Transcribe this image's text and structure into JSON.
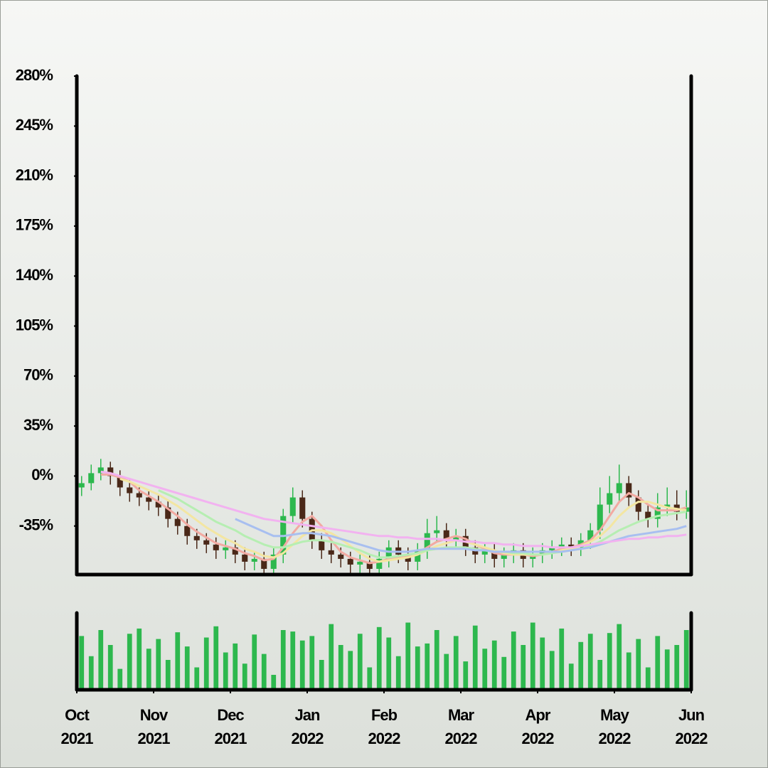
{
  "chart_data": {
    "type": "candlestick",
    "x": [
      0.0625,
      0.1875,
      0.3125,
      0.4375,
      0.5625,
      0.6875,
      0.8125,
      0.9375,
      1.0625,
      1.1875,
      1.3125,
      1.4375,
      1.5625,
      1.6875,
      1.8125,
      1.9375,
      2.0625,
      2.1875,
      2.3125,
      2.4375,
      2.5625,
      2.6875,
      2.8125,
      2.9375,
      3.0625,
      3.1875,
      3.3125,
      3.4375,
      3.5625,
      3.6875,
      3.8125,
      3.9375,
      4.0625,
      4.1875,
      4.3125,
      4.4375,
      4.5625,
      4.6875,
      4.8125,
      4.9375,
      5.0625,
      5.1875,
      5.3125,
      5.4375,
      5.5625,
      5.6875,
      5.8125,
      5.9375,
      6.0625,
      6.1875,
      6.3125,
      6.4375,
      6.5625,
      6.6875,
      6.8125,
      6.9375,
      7.0625,
      7.1875,
      7.3125,
      7.4375,
      7.5625,
      7.6875,
      7.8125,
      7.9375
    ],
    "open": [
      -8,
      -5,
      2,
      6,
      0,
      -8,
      -12,
      -15,
      -18,
      -22,
      -30,
      -35,
      -42,
      -45,
      -48,
      -52,
      -50,
      -55,
      -60,
      -58,
      -65,
      -55,
      -28,
      -15,
      -30,
      -45,
      -52,
      -55,
      -58,
      -62,
      -60,
      -65,
      -58,
      -50,
      -55,
      -60,
      -52,
      -40,
      -38,
      -45,
      -42,
      -50,
      -55,
      -52,
      -58,
      -55,
      -52,
      -58,
      -55,
      -52,
      -50,
      -48,
      -50,
      -45,
      -38,
      -20,
      -12,
      -5,
      -15,
      -25,
      -30,
      -22,
      -20,
      -25
    ],
    "high": [
      0,
      8,
      12,
      10,
      4,
      -3,
      -8,
      -10,
      -13,
      -17,
      -25,
      -30,
      -37,
      -40,
      -43,
      -45,
      -45,
      -50,
      -53,
      -53,
      -50,
      -23,
      -8,
      -10,
      -25,
      -40,
      -47,
      -50,
      -53,
      -55,
      -55,
      -53,
      -45,
      -45,
      -50,
      -47,
      -30,
      -28,
      -33,
      -37,
      -37,
      -45,
      -47,
      -47,
      -50,
      -47,
      -47,
      -50,
      -47,
      -45,
      -43,
      -43,
      -40,
      -33,
      -8,
      0,
      8,
      0,
      -10,
      -20,
      -12,
      -8,
      -10,
      -10
    ],
    "low": [
      -14,
      -10,
      -3,
      -6,
      -14,
      -18,
      -21,
      -24,
      -28,
      -36,
      -41,
      -48,
      -51,
      -54,
      -58,
      -58,
      -61,
      -66,
      -66,
      -71,
      -71,
      -61,
      -33,
      -36,
      -51,
      -58,
      -61,
      -64,
      -68,
      -68,
      -71,
      -71,
      -64,
      -61,
      -66,
      -66,
      -58,
      -46,
      -51,
      -51,
      -56,
      -61,
      -61,
      -64,
      -64,
      -61,
      -64,
      -64,
      -61,
      -58,
      -56,
      -56,
      -56,
      -51,
      -44,
      -26,
      -18,
      -21,
      -31,
      -36,
      -36,
      -28,
      -31,
      -30
    ],
    "close": [
      -5,
      2,
      6,
      0,
      -8,
      -12,
      -15,
      -18,
      -22,
      -30,
      -35,
      -42,
      -45,
      -48,
      -52,
      -50,
      -55,
      -60,
      -58,
      -65,
      -55,
      -28,
      -15,
      -30,
      -45,
      -52,
      -55,
      -58,
      -62,
      -60,
      -65,
      -58,
      -50,
      -55,
      -60,
      -52,
      -40,
      -38,
      -45,
      -42,
      -50,
      -55,
      -52,
      -58,
      -55,
      -52,
      -58,
      -55,
      -52,
      -50,
      -48,
      -50,
      -45,
      -38,
      -20,
      -12,
      -5,
      -15,
      -25,
      -30,
      -22,
      -20,
      -25,
      -22
    ],
    "up_color": "#2db84e",
    "down_color": "#4a2818",
    "series": [
      {
        "color": "#f2aaa2",
        "values": [
          null,
          null,
          1,
          1,
          -1,
          -4,
          -10,
          -14,
          -18,
          -23,
          -28,
          -34,
          -39,
          -43,
          -47,
          -49,
          -51,
          -54,
          -56,
          -59,
          -58,
          -50,
          -40,
          -32,
          -28,
          -35,
          -45,
          -53,
          -57,
          -59,
          -61,
          -60,
          -58,
          -57,
          -56,
          -54,
          -50,
          -46,
          -44,
          -42,
          -44,
          -48,
          -51,
          -54,
          -55,
          -55,
          -55,
          -56,
          -55,
          -53,
          -51,
          -50,
          -48,
          -45,
          -38,
          -28,
          -18,
          -12,
          -15,
          -20,
          -24,
          -24,
          -24,
          -22
        ]
      },
      {
        "color": "#f3e6a2",
        "values": [
          null,
          null,
          null,
          null,
          -2,
          -4,
          -7,
          -10,
          -13,
          -17,
          -21,
          -26,
          -31,
          -36,
          -40,
          -44,
          -47,
          -51,
          -53,
          -56,
          -57,
          -54,
          -48,
          -42,
          -38,
          -38,
          -40,
          -44,
          -49,
          -54,
          -58,
          -60,
          -59,
          -58,
          -57,
          -55,
          -52,
          -49,
          -47,
          -45,
          -46,
          -48,
          -50,
          -52,
          -54,
          -55,
          -55,
          -55,
          -55,
          -54,
          -52,
          -51,
          -49,
          -46,
          -42,
          -36,
          -28,
          -22,
          -18,
          -18,
          -20,
          -22,
          -23,
          -24
        ]
      },
      {
        "color": "#b6eeb2",
        "values": [
          null,
          null,
          null,
          null,
          null,
          null,
          null,
          null,
          -10,
          -13,
          -16,
          -20,
          -24,
          -28,
          -32,
          -35,
          -38,
          -42,
          -45,
          -48,
          -50,
          -50,
          -48,
          -46,
          -45,
          -45,
          -46,
          -48,
          -50,
          -52,
          -55,
          -57,
          -57,
          -56,
          -55,
          -54,
          -52,
          -51,
          -50,
          -50,
          -50,
          -51,
          -52,
          -53,
          -53,
          -54,
          -54,
          -55,
          -55,
          -54,
          -53,
          -52,
          -51,
          -49,
          -46,
          -42,
          -38,
          -35,
          -32,
          -30,
          -28,
          -27,
          -26,
          -25
        ]
      },
      {
        "color": "#a8bff0",
        "values": [
          null,
          null,
          null,
          null,
          null,
          null,
          null,
          null,
          null,
          null,
          null,
          null,
          null,
          null,
          null,
          null,
          -30,
          -33,
          -36,
          -39,
          -42,
          -42,
          -41,
          -40,
          -40,
          -41,
          -42,
          -44,
          -46,
          -48,
          -50,
          -52,
          -53,
          -53,
          -53,
          -52,
          -51,
          -51,
          -51,
          -51,
          -51,
          -52,
          -52,
          -53,
          -53,
          -53,
          -53,
          -53,
          -53,
          -53,
          -53,
          -52,
          -51,
          -50,
          -48,
          -46,
          -44,
          -42,
          -41,
          -40,
          -39,
          -38,
          -37,
          -35
        ]
      },
      {
        "color": "#f2b2f0",
        "values": [
          null,
          null,
          3,
          2,
          0,
          -2,
          -4,
          -6,
          -8,
          -10,
          -12,
          -14,
          -16,
          -18,
          -20,
          -22,
          -24,
          -26,
          -28,
          -30,
          -31,
          -32,
          -33,
          -34,
          -35,
          -36,
          -37,
          -38,
          -39,
          -40,
          -41,
          -42,
          -42,
          -43,
          -43,
          -44,
          -44,
          -44,
          -45,
          -45,
          -46,
          -46,
          -47,
          -47,
          -48,
          -48,
          -49,
          -49,
          -49,
          -50,
          -50,
          -50,
          -49,
          -48,
          -47,
          -46,
          -45,
          -44,
          -44,
          -43,
          -43,
          -42,
          -42,
          -41
        ]
      }
    ],
    "volume": {
      "color": "#2db84e",
      "ylim": [
        0,
        100
      ],
      "values": [
        72,
        45,
        80,
        60,
        28,
        75,
        82,
        55,
        68,
        40,
        77,
        58,
        30,
        70,
        85,
        50,
        62,
        35,
        74,
        48,
        20,
        80,
        78,
        66,
        72,
        40,
        88,
        60,
        52,
        75,
        30,
        84,
        70,
        45,
        90,
        58,
        62,
        80,
        48,
        72,
        38,
        86,
        55,
        66,
        44,
        78,
        60,
        90,
        70,
        52,
        82,
        35,
        64,
        75,
        40,
        76,
        88,
        50,
        68,
        30,
        72,
        54,
        60,
        80
      ]
    },
    "xlim": [
      0,
      8
    ],
    "xticks": [
      {
        "value": 0,
        "label": "Oct 2021"
      },
      {
        "value": 1,
        "label": "Nov 2021"
      },
      {
        "value": 2,
        "label": "Dec 2021"
      },
      {
        "value": 3,
        "label": "Jan 2022"
      },
      {
        "value": 4,
        "label": "Feb 2022"
      },
      {
        "value": 5,
        "label": "Mar 2022"
      },
      {
        "value": 6,
        "label": "Apr 2022"
      },
      {
        "value": 7,
        "label": "May 2022"
      },
      {
        "value": 8,
        "label": "Jun 2022"
      }
    ],
    "ylim": [
      -69,
      280
    ],
    "yticks": [
      {
        "value": 280,
        "label": "280%"
      },
      {
        "value": 245,
        "label": "245%"
      },
      {
        "value": 210,
        "label": "210%"
      },
      {
        "value": 175,
        "label": "175%"
      },
      {
        "value": 140,
        "label": "140%"
      },
      {
        "value": 105,
        "label": "105%"
      },
      {
        "value": 70,
        "label": "70%"
      },
      {
        "value": 35,
        "label": "35%"
      },
      {
        "value": 0,
        "label": "0%"
      },
      {
        "value": -35,
        "label": "-35%"
      }
    ]
  }
}
